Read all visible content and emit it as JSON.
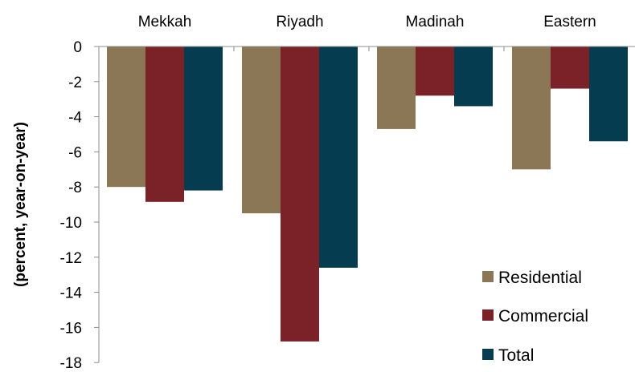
{
  "chart_data": {
    "type": "bar",
    "title": "",
    "xlabel": "",
    "ylabel": "(percent, year-on-year)",
    "categories": [
      "Mekkah",
      "Riyadh",
      "Madinah",
      "Eastern"
    ],
    "series": [
      {
        "name": "Residential",
        "color": "#8b7755",
        "values": [
          -8.0,
          -9.5,
          -4.7,
          -7.0
        ]
      },
      {
        "name": "Commercial",
        "color": "#7b2229",
        "values": [
          -8.85,
          -16.8,
          -2.8,
          -2.4
        ]
      },
      {
        "name": "Total",
        "color": "#053c4f",
        "values": [
          -8.2,
          -12.6,
          -3.4,
          -5.4
        ]
      }
    ],
    "ylim": [
      -18,
      0
    ],
    "yticks": [
      0,
      -2,
      -4,
      -6,
      -8,
      -10,
      -12,
      -14,
      -16,
      -18
    ],
    "grid": false,
    "legend_position": "bottom-right",
    "category_axis_position": "top"
  }
}
